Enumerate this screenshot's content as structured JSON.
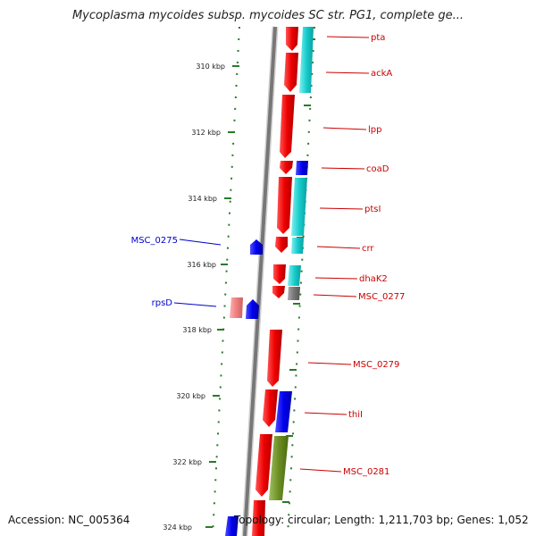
{
  "title": "Mycoplasma mycoides subsp. mycoides SC str. PG1, complete ge...",
  "accession": "Accession: NC_005364",
  "summary": "Topology: circular; Length: 1,211,703 bp; Genes: 1,052",
  "scale_labels": [
    "310 kbp",
    "312 kbp",
    "314 kbp",
    "316 kbp",
    "318 kbp",
    "320 kbp",
    "322 kbp",
    "324 kbp"
  ],
  "genes": [
    {
      "label": "pta",
      "color": "#cc0000"
    },
    {
      "label": "ackA",
      "color": "#cc0000"
    },
    {
      "label": "lpp",
      "color": "#cc0000"
    },
    {
      "label": "coaD",
      "color": "#cc0000"
    },
    {
      "label": "ptsI",
      "color": "#cc0000"
    },
    {
      "label": "crr",
      "color": "#cc0000"
    },
    {
      "label": "dhaK2",
      "color": "#cc0000"
    },
    {
      "label": "MSC_0277",
      "color": "#cc0000"
    },
    {
      "label": "MSC_0279",
      "color": "#cc0000"
    },
    {
      "label": "thiI",
      "color": "#cc0000"
    },
    {
      "label": "MSC_0281",
      "color": "#cc0000"
    },
    {
      "label": "MSC_0275",
      "color": "#0000cc"
    },
    {
      "label": "rpsD",
      "color": "#0000cc"
    }
  ],
  "colors": {
    "forward_gene": "#ee1111",
    "reverse_gene": "#1111dd",
    "cyan_track": "#22cccc",
    "olive_track": "#6b8e23",
    "grey_track": "#777777",
    "pink_gene": "#ee8888",
    "tick": "#2a7a2a",
    "backbone": "#888888"
  }
}
